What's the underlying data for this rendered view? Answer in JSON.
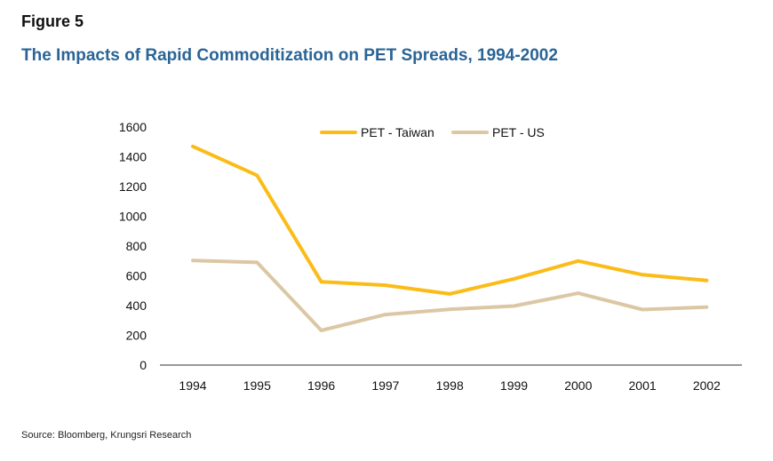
{
  "figure_label": "Figure 5",
  "title": "The Impacts of Rapid Commoditization on PET Spreads, 1994-2002",
  "source": "Source: Bloomberg, Krungsri Research",
  "colors": {
    "taiwan": "#fbbc18",
    "us": "#dcc7a4",
    "title": "#2a6496",
    "axis": "#333333"
  },
  "chart_data": {
    "type": "line",
    "categories": [
      "1994",
      "1995",
      "1996",
      "1997",
      "1998",
      "1999",
      "2000",
      "2001",
      "2002"
    ],
    "series": [
      {
        "name": "PET - Taiwan",
        "values": [
          1470,
          1275,
          560,
          537,
          478,
          580,
          700,
          607,
          569
        ]
      },
      {
        "name": "PET - US",
        "values": [
          703,
          690,
          233,
          340,
          375,
          397,
          483,
          373,
          390
        ]
      }
    ],
    "yticks": [
      0,
      200,
      400,
      600,
      800,
      1000,
      1200,
      1400,
      1600
    ],
    "ylim": [
      0,
      1600
    ],
    "grid": false,
    "legend_position": "top-center"
  }
}
